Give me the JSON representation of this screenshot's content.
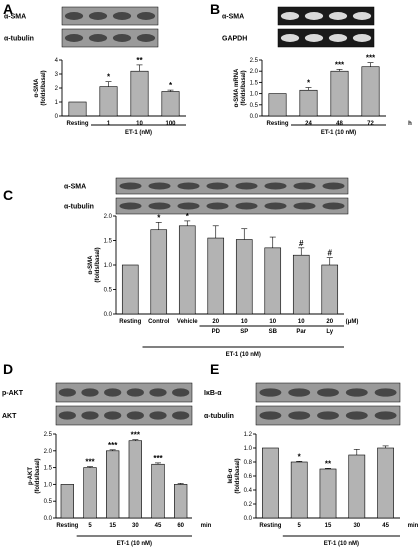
{
  "figure": {
    "panels": [
      "A",
      "B",
      "C",
      "D",
      "E"
    ],
    "stat_symbols": {
      "p05": "*",
      "p01": "**",
      "p001": "***",
      "hash": "#"
    }
  },
  "chart_data": [
    {
      "panel": "A",
      "type": "bar",
      "blot_labels": [
        "α-SMA",
        "α-tubulin"
      ],
      "categories": [
        "Resting",
        "1",
        "10",
        "100"
      ],
      "values": [
        1.0,
        2.1,
        3.2,
        1.75
      ],
      "errors": [
        0,
        0.35,
        0.45,
        0.1
      ],
      "significance": [
        "",
        "*",
        "**",
        "*"
      ],
      "ylim": [
        0,
        4
      ],
      "yticks": [
        "0",
        "1",
        "2",
        "3",
        "4"
      ],
      "ylabel": "α-SMA\n(folds/basal)",
      "xgroup": "ET-1 (nM)",
      "xunit": ""
    },
    {
      "panel": "B",
      "type": "bar",
      "blot_labels": [
        "α-SMA",
        "GAPDH"
      ],
      "categories": [
        "Resting",
        "24",
        "48",
        "72"
      ],
      "values": [
        1.0,
        1.15,
        2.0,
        2.2
      ],
      "errors": [
        0,
        0.12,
        0.08,
        0.18
      ],
      "significance": [
        "",
        "*",
        "***",
        "***"
      ],
      "ylim": [
        0,
        2.5
      ],
      "yticks": [
        "0.0",
        "0.5",
        "1.0",
        "1.5",
        "2.0",
        "2.5"
      ],
      "ylabel": "α-SMA mRNA\n(folds/basal)",
      "xgroup": "ET-1 (10 nM)",
      "xunit": "h"
    },
    {
      "panel": "C",
      "type": "bar",
      "blot_labels": [
        "α-SMA",
        "α-tubulin"
      ],
      "categories": [
        "Resting",
        "Control",
        "Vehicle",
        "20",
        "10",
        "10",
        "10",
        "20"
      ],
      "inhibitors": [
        "",
        "",
        "",
        "PD",
        "SP",
        "SB",
        "Par",
        "Ly"
      ],
      "values": [
        1.0,
        1.72,
        1.8,
        1.55,
        1.52,
        1.35,
        1.2,
        1.0
      ],
      "errors": [
        0,
        0.15,
        0.1,
        0.25,
        0.22,
        0.22,
        0.15,
        0.15
      ],
      "significance": [
        "",
        "*",
        "*",
        "",
        "",
        "",
        "#",
        "#"
      ],
      "ylim": [
        0,
        2
      ],
      "yticks": [
        "0.0",
        "0.5",
        "1.0",
        "1.5",
        "2.0"
      ],
      "ylabel": "α-SMA\n(folds/basal)",
      "xgroup": "ET-1 (10 nM)",
      "xunit": "(μM)"
    },
    {
      "panel": "D",
      "type": "bar",
      "blot_labels": [
        "p-AKT",
        "AKT"
      ],
      "categories": [
        "Resting",
        "5",
        "15",
        "30",
        "45",
        "60"
      ],
      "values": [
        1.0,
        1.5,
        2.0,
        2.3,
        1.6,
        1.0
      ],
      "errors": [
        0,
        0.03,
        0.03,
        0.03,
        0.04,
        0.03
      ],
      "significance": [
        "",
        "***",
        "***",
        "***",
        "***",
        ""
      ],
      "ylim": [
        0,
        2.5
      ],
      "yticks": [
        "0.0",
        "0.5",
        "1.0",
        "1.5",
        "2.0",
        "2.5"
      ],
      "ylabel": "p-AKT\n(folds/basal)",
      "xgroup": "ET-1 (10 nM)",
      "xunit": "min"
    },
    {
      "panel": "E",
      "type": "bar",
      "blot_labels": [
        "IκB-α",
        "α-tubulin"
      ],
      "categories": [
        "Resting",
        "5",
        "15",
        "30",
        "45"
      ],
      "values": [
        1.0,
        0.8,
        0.7,
        0.9,
        1.0
      ],
      "errors": [
        0,
        0.01,
        0.01,
        0.08,
        0.03
      ],
      "significance": [
        "",
        "*",
        "**",
        "",
        ""
      ],
      "ylim": [
        0,
        1.2
      ],
      "yticks": [
        "0.0",
        "0.2",
        "0.4",
        "0.6",
        "0.8",
        "1.0",
        "1.2"
      ],
      "ylabel": "IκB-α\n(folds/basal)",
      "xgroup": "ET-1 (10 nM)",
      "xunit": "min"
    }
  ]
}
